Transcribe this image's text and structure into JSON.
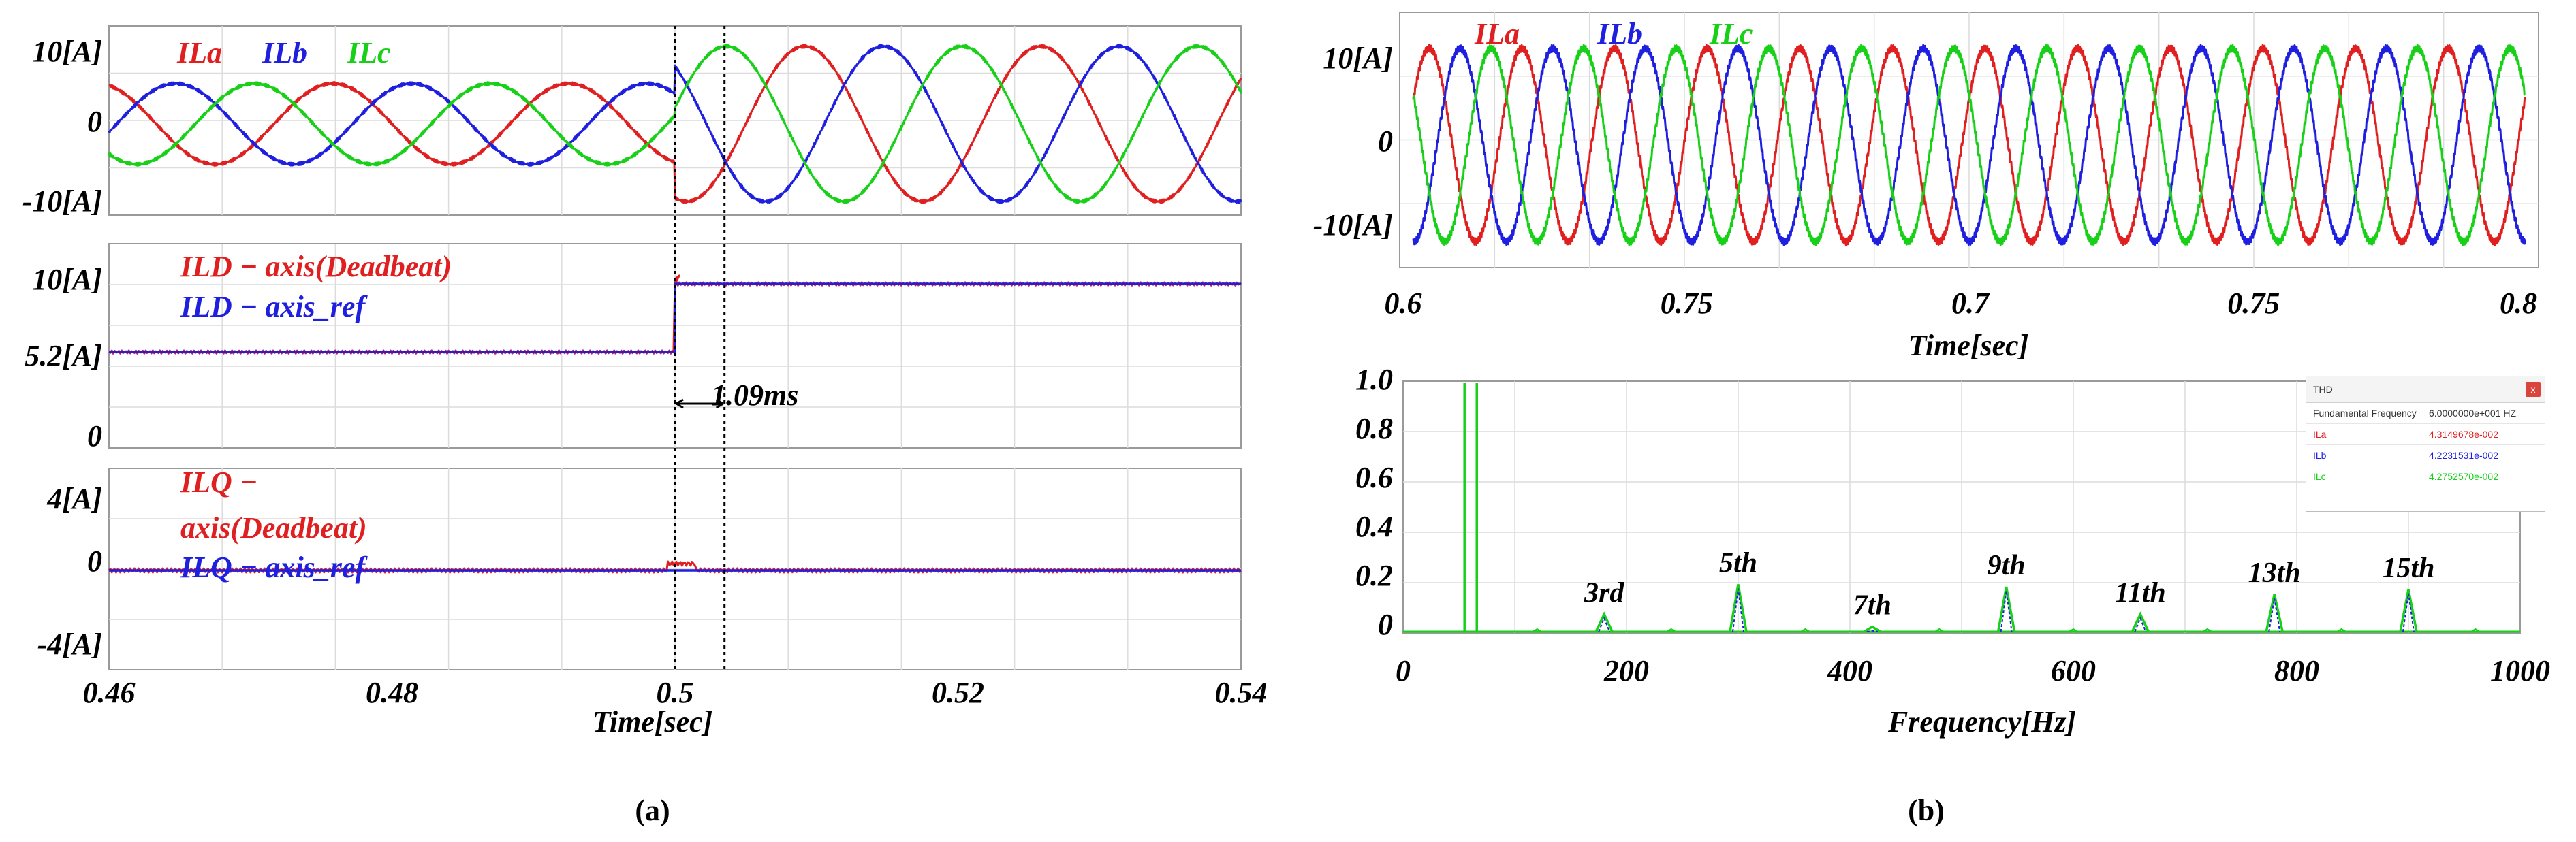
{
  "panel_a": {
    "caption": "(a)",
    "xlabel": "Time[sec]",
    "xticks": [
      "0.46",
      "0.48",
      "0.5",
      "0.52",
      "0.54"
    ],
    "delay_label": "1.09ms",
    "sub1": {
      "yticks": [
        "10[A]",
        "0",
        "-10[A]"
      ],
      "legend": [
        "ILa",
        "ILb",
        "ILc"
      ]
    },
    "sub2": {
      "yticks": [
        "10[A]",
        "5.2[A]",
        "0"
      ],
      "legend": [
        "ILD − axis(Deadbeat)",
        "ILD − axis_ref"
      ]
    },
    "sub3": {
      "yticks": [
        "4[A]",
        "0",
        "-4[A]"
      ],
      "legend_line1": "ILQ −",
      "legend_line2": "axis(Deadbeat)",
      "legend_ref": "ILQ − axis_ref"
    }
  },
  "panel_b": {
    "caption": "(b)",
    "top": {
      "xlabel": "Time[sec]",
      "xticks": [
        "0.6",
        "0.75",
        "0.7",
        "0.75",
        "0.8"
      ],
      "yticks": [
        "10[A]",
        "0",
        "-10[A]"
      ],
      "legend": [
        "ILa",
        "ILb",
        "ILc"
      ]
    },
    "bottom": {
      "xlabel": "Frequency[Hz]",
      "xticks": [
        "0",
        "200",
        "400",
        "600",
        "800",
        "1000"
      ],
      "yticks": [
        "1.0",
        "0.8",
        "0.6",
        "0.4",
        "0.2",
        "0"
      ],
      "harmonic_labels": [
        "3rd",
        "5th",
        "7th",
        "9th",
        "11th",
        "13th",
        "15th"
      ],
      "thd": {
        "title": "THD",
        "close_glyph": "x",
        "rows": [
          {
            "name": "Fundamental Frequency",
            "value": "6.0000000e+001 HZ"
          },
          {
            "name": "ILa",
            "value": "4.3149678e-002"
          },
          {
            "name": "ILb",
            "value": "4.2231531e-002"
          },
          {
            "name": "ILc",
            "value": "4.2752570e-002"
          }
        ]
      }
    }
  },
  "chart_data": [
    {
      "type": "line",
      "panel": "a-1",
      "x_range": [
        0.46,
        0.54
      ],
      "ylim": [
        -10,
        10
      ],
      "grid": true,
      "legend_position": "top-left",
      "series": [
        {
          "name": "ILa",
          "color": "#e02020",
          "amplitude_before": 5.2,
          "amplitude_after": 10,
          "frequency_hz": 60,
          "step_time": 0.5
        },
        {
          "name": "ILb",
          "color": "#1f1fe0",
          "amplitude_before": 5.2,
          "amplitude_after": 10,
          "frequency_hz": 60,
          "step_time": 0.5
        },
        {
          "name": "ILc",
          "color": "#18d018",
          "amplitude_before": 5.2,
          "amplitude_after": 10,
          "frequency_hz": 60,
          "step_time": 0.5
        }
      ]
    },
    {
      "type": "line",
      "panel": "a-2",
      "x_range": [
        0.46,
        0.54
      ],
      "ylim": [
        0,
        10
      ],
      "grid": true,
      "series": [
        {
          "name": "ILD − axis(Deadbeat)",
          "color": "#e02020",
          "points": [
            [
              0.46,
              5.2
            ],
            [
              0.5,
              5.2
            ],
            [
              0.5,
              9.5
            ],
            [
              0.5011,
              9.3
            ],
            [
              0.54,
              9.3
            ]
          ]
        },
        {
          "name": "ILD − axis_ref",
          "color": "#1f1fe0",
          "points": [
            [
              0.46,
              5.2
            ],
            [
              0.5,
              5.2
            ],
            [
              0.5,
              9.3
            ],
            [
              0.54,
              9.3
            ]
          ]
        }
      ],
      "annotation": {
        "text": "1.09ms",
        "x_start": 0.5,
        "x_end": 0.50109
      }
    },
    {
      "type": "line",
      "panel": "a-3",
      "x_range": [
        0.46,
        0.54
      ],
      "ylim": [
        -4,
        4
      ],
      "grid": true,
      "series": [
        {
          "name": "ILQ − axis(Deadbeat)",
          "color": "#e02020",
          "points": [
            [
              0.46,
              0
            ],
            [
              0.54,
              0
            ]
          ]
        },
        {
          "name": "ILQ − axis_ref",
          "color": "#1f1fe0",
          "points": [
            [
              0.46,
              0
            ],
            [
              0.54,
              0
            ]
          ]
        }
      ]
    },
    {
      "type": "line",
      "panel": "b-1",
      "x_range": [
        0.6,
        0.8
      ],
      "ylim": [
        -10,
        10
      ],
      "grid": true,
      "series": [
        {
          "name": "ILa",
          "color": "#e02020",
          "amplitude": 10,
          "frequency_hz": 60
        },
        {
          "name": "ILb",
          "color": "#1f1fe0",
          "amplitude": 10,
          "frequency_hz": 60
        },
        {
          "name": "ILc",
          "color": "#18d018",
          "amplitude": 10,
          "frequency_hz": 60
        }
      ]
    },
    {
      "type": "line",
      "panel": "b-2",
      "xlabel": "Frequency[Hz]",
      "xlim": [
        0,
        1000
      ],
      "ylim": [
        0,
        1.0
      ],
      "grid": true,
      "harmonics": [
        {
          "label": "3rd",
          "freq": 180,
          "magnitude": 0.07
        },
        {
          "label": "5th",
          "freq": 300,
          "magnitude": 0.19
        },
        {
          "label": "7th",
          "freq": 420,
          "magnitude": 0.02
        },
        {
          "label": "9th",
          "freq": 540,
          "magnitude": 0.18
        },
        {
          "label": "11th",
          "freq": 660,
          "magnitude": 0.07
        },
        {
          "label": "13th",
          "freq": 780,
          "magnitude": 0.15
        },
        {
          "label": "15th",
          "freq": 900,
          "magnitude": 0.17
        }
      ],
      "fundamental": {
        "freq": 60,
        "magnitude": 1.0
      }
    }
  ]
}
